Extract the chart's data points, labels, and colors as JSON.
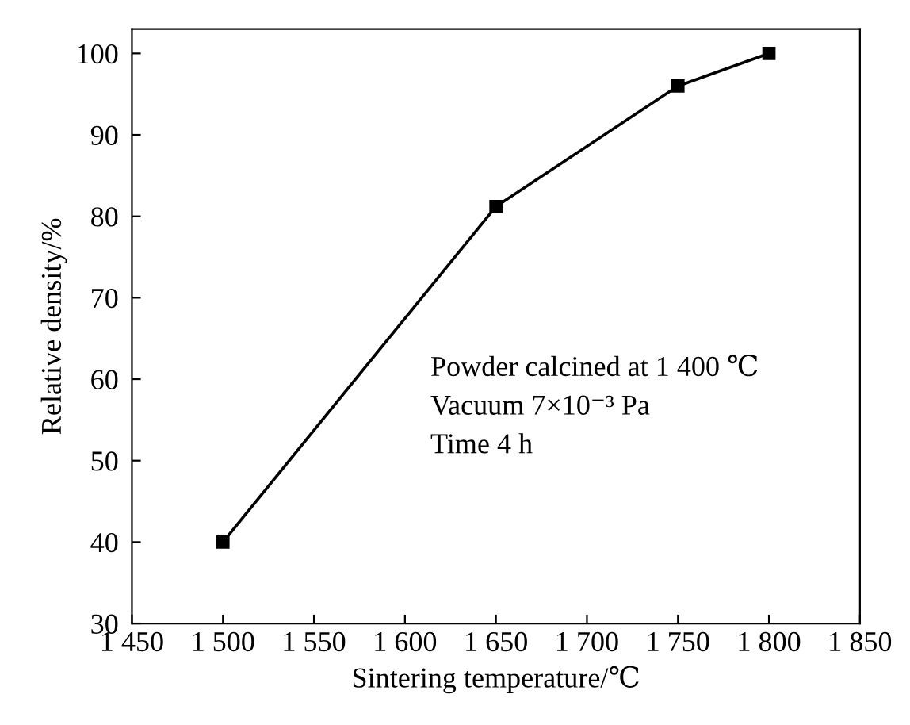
{
  "chart_data": {
    "type": "line",
    "xlabel": "Sintering temperature/℃",
    "ylabel": "Relative density/%",
    "x": [
      1500,
      1650,
      1750,
      1800
    ],
    "series": [
      {
        "color": "#000000",
        "values": [
          40,
          81.2,
          96,
          100
        ]
      }
    ],
    "xlim": [
      1450,
      1850
    ],
    "xticks": [
      {
        "value": 1450,
        "label": "1 450"
      },
      {
        "value": 1500,
        "label": "1 500"
      },
      {
        "value": 1550,
        "label": "1 550"
      },
      {
        "value": 1600,
        "label": "1 600"
      },
      {
        "value": 1650,
        "label": "1 650"
      },
      {
        "value": 1700,
        "label": "1 700"
      },
      {
        "value": 1750,
        "label": "1 750"
      },
      {
        "value": 1800,
        "label": "1 800"
      },
      {
        "value": 1850,
        "label": "1 850"
      }
    ],
    "ylim": [
      30,
      103
    ],
    "yticks": [
      30,
      40,
      50,
      60,
      70,
      80,
      90,
      100
    ],
    "marker": "square",
    "line_style": "solid",
    "annotations": [
      "Powder calcined at 1 400 ℃",
      "Vacuum 7×10⁻³ Pa",
      "Time 4 h"
    ]
  }
}
